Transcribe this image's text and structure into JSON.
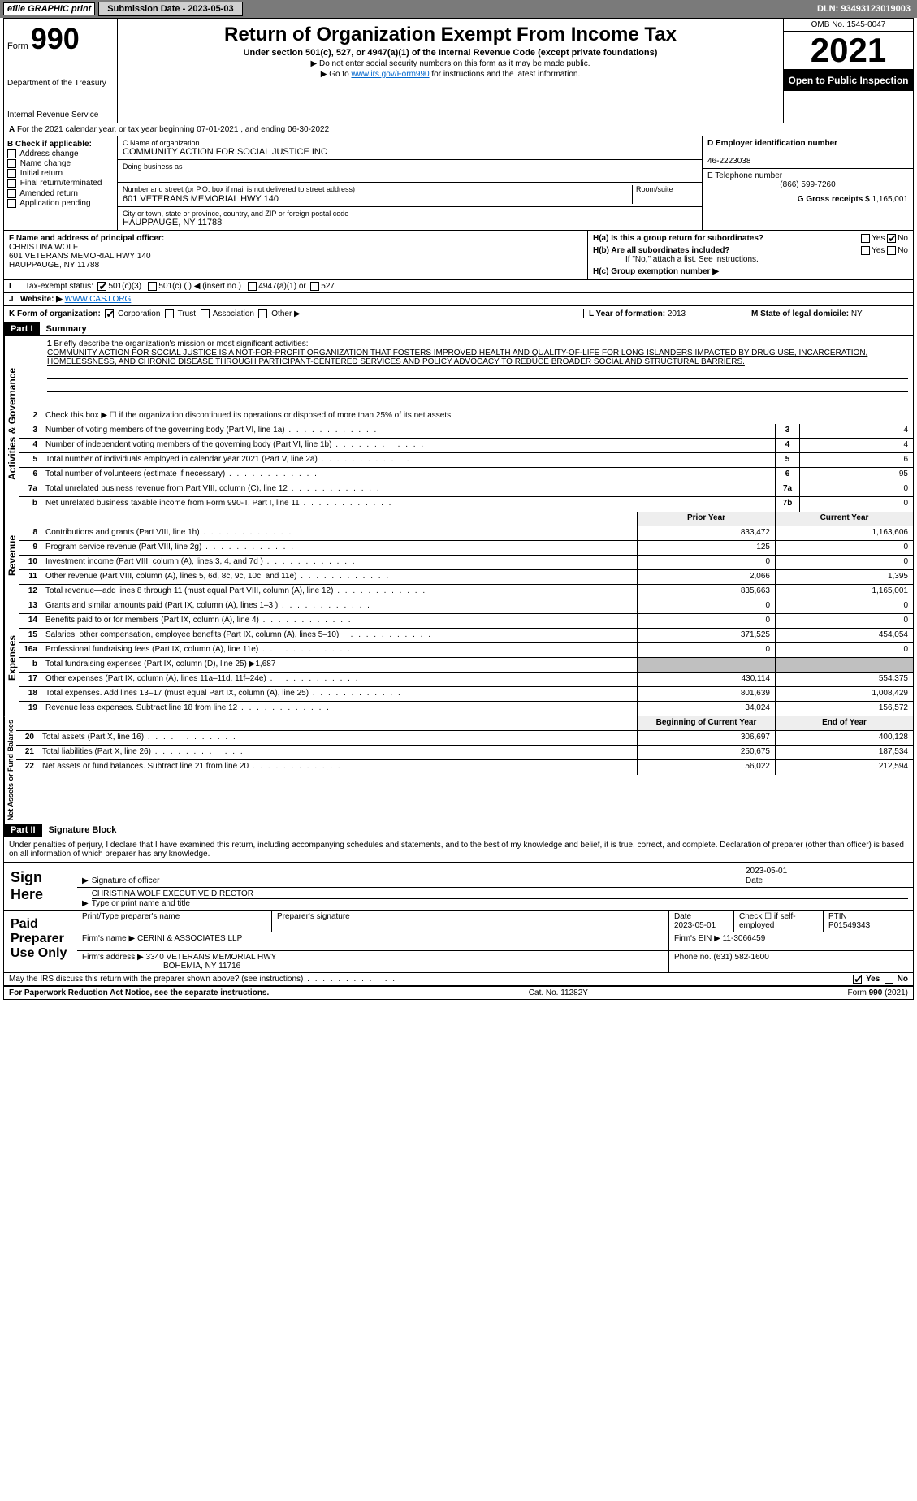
{
  "topbar": {
    "efile": "efile GRAPHIC print",
    "submission_btn": "Submission Date - 2023-05-03",
    "dln": "DLN: 93493123019003"
  },
  "header": {
    "form_label": "Form",
    "form_num": "990",
    "dept1": "Department of the Treasury",
    "dept2": "Internal Revenue Service",
    "title": "Return of Organization Exempt From Income Tax",
    "sub": "Under section 501(c), 527, or 4947(a)(1) of the Internal Revenue Code (except private foundations)",
    "note1": "▶ Do not enter social security numbers on this form as it may be made public.",
    "note2_pre": "▶ Go to ",
    "note2_link": "www.irs.gov/Form990",
    "note2_post": " for instructions and the latest information.",
    "omb": "OMB No. 1545-0047",
    "year": "2021",
    "open": "Open to Public Inspection"
  },
  "row_a": "For the 2021 calendar year, or tax year beginning 07-01-2021    , and ending 06-30-2022",
  "b": {
    "hdr": "B Check if applicable:",
    "o1": "Address change",
    "o2": "Name change",
    "o3": "Initial return",
    "o4": "Final return/terminated",
    "o5": "Amended return",
    "o6": "Application pending"
  },
  "c": {
    "name_lbl": "C Name of organization",
    "name": "COMMUNITY ACTION FOR SOCIAL JUSTICE INC",
    "dba_lbl": "Doing business as",
    "addr_lbl": "Number and street (or P.O. box if mail is not delivered to street address)",
    "room_lbl": "Room/suite",
    "addr": "601 VETERANS MEMORIAL HWY 140",
    "city_lbl": "City or town, state or province, country, and ZIP or foreign postal code",
    "city": "HAUPPAUGE, NY  11788"
  },
  "d": {
    "ein_lbl": "D Employer identification number",
    "ein": "46-2223038",
    "tel_lbl": "E Telephone number",
    "tel": "(866) 599-7260",
    "gross_lbl": "G Gross receipts $",
    "gross": "1,165,001"
  },
  "f": {
    "lbl": "F Name and address of principal officer:",
    "name": "CHRISTINA WOLF",
    "addr": "601 VETERANS MEMORIAL HWY 140",
    "city": "HAUPPAUGE, NY  11788"
  },
  "h": {
    "a": "H(a)  Is this a group return for subordinates?",
    "b": "H(b)  Are all subordinates included?",
    "b_note": "If \"No,\" attach a list. See instructions.",
    "c": "H(c)  Group exemption number ▶",
    "yes": "Yes",
    "no": "No"
  },
  "i": {
    "lbl": "Tax-exempt status:",
    "o1": "501(c)(3)",
    "o2": "501(c) (  ) ◀ (insert no.)",
    "o3": "4947(a)(1) or",
    "o4": "527"
  },
  "j": {
    "lbl": "Website: ▶",
    "val": "WWW.CASJ.ORG"
  },
  "k": {
    "lbl": "K Form of organization:",
    "o1": "Corporation",
    "o2": "Trust",
    "o3": "Association",
    "o4": "Other ▶"
  },
  "l": {
    "lbl": "L Year of formation:",
    "val": "2013"
  },
  "m": {
    "lbl": "M State of legal domicile:",
    "val": "NY"
  },
  "part1": {
    "num": "Part I",
    "title": "Summary"
  },
  "q1": {
    "lbl": "Briefly describe the organization's mission or most significant activities:",
    "text": "COMMUNITY ACTION FOR SOCIAL JUSTICE IS A NOT-FOR-PROFIT ORGANIZATION THAT FOSTERS IMPROVED HEALTH AND QUALITY-OF-LIFE FOR LONG ISLANDERS IMPACTED BY DRUG USE, INCARCERATION, HOMELESSNESS, AND CHRONIC DISEASE THROUGH PARTICIPANT-CENTERED SERVICES AND POLICY ADVOCACY TO REDUCE BROADER SOCIAL AND STRUCTURAL BARRIERS."
  },
  "q2": "Check this box ▶ ☐ if the organization discontinued its operations or disposed of more than 25% of its net assets.",
  "lines_gov": [
    {
      "n": "3",
      "d": "Number of voting members of the governing body (Part VI, line 1a)",
      "bn": "3",
      "v": "4"
    },
    {
      "n": "4",
      "d": "Number of independent voting members of the governing body (Part VI, line 1b)",
      "bn": "4",
      "v": "4"
    },
    {
      "n": "5",
      "d": "Total number of individuals employed in calendar year 2021 (Part V, line 2a)",
      "bn": "5",
      "v": "6"
    },
    {
      "n": "6",
      "d": "Total number of volunteers (estimate if necessary)",
      "bn": "6",
      "v": "95"
    },
    {
      "n": "7a",
      "d": "Total unrelated business revenue from Part VIII, column (C), line 12",
      "bn": "7a",
      "v": "0"
    },
    {
      "n": "b",
      "d": "Net unrelated business taxable income from Form 990-T, Part I, line 11",
      "bn": "7b",
      "v": "0"
    }
  ],
  "col_hdr": {
    "py": "Prior Year",
    "cy": "Current Year"
  },
  "lines_rev": [
    {
      "n": "8",
      "d": "Contributions and grants (Part VIII, line 1h)",
      "py": "833,472",
      "cy": "1,163,606"
    },
    {
      "n": "9",
      "d": "Program service revenue (Part VIII, line 2g)",
      "py": "125",
      "cy": "0"
    },
    {
      "n": "10",
      "d": "Investment income (Part VIII, column (A), lines 3, 4, and 7d )",
      "py": "0",
      "cy": "0"
    },
    {
      "n": "11",
      "d": "Other revenue (Part VIII, column (A), lines 5, 6d, 8c, 9c, 10c, and 11e)",
      "py": "2,066",
      "cy": "1,395"
    },
    {
      "n": "12",
      "d": "Total revenue—add lines 8 through 11 (must equal Part VIII, column (A), line 12)",
      "py": "835,663",
      "cy": "1,165,001"
    }
  ],
  "lines_exp": [
    {
      "n": "13",
      "d": "Grants and similar amounts paid (Part IX, column (A), lines 1–3 )",
      "py": "0",
      "cy": "0"
    },
    {
      "n": "14",
      "d": "Benefits paid to or for members (Part IX, column (A), line 4)",
      "py": "0",
      "cy": "0"
    },
    {
      "n": "15",
      "d": "Salaries, other compensation, employee benefits (Part IX, column (A), lines 5–10)",
      "py": "371,525",
      "cy": "454,054"
    },
    {
      "n": "16a",
      "d": "Professional fundraising fees (Part IX, column (A), line 11e)",
      "py": "0",
      "cy": "0"
    },
    {
      "n": "b",
      "d": "Total fundraising expenses (Part IX, column (D), line 25) ▶1,687",
      "py": "",
      "cy": "",
      "grey": true
    },
    {
      "n": "17",
      "d": "Other expenses (Part IX, column (A), lines 11a–11d, 11f–24e)",
      "py": "430,114",
      "cy": "554,375"
    },
    {
      "n": "18",
      "d": "Total expenses. Add lines 13–17 (must equal Part IX, column (A), line 25)",
      "py": "801,639",
      "cy": "1,008,429"
    },
    {
      "n": "19",
      "d": "Revenue less expenses. Subtract line 18 from line 12",
      "py": "34,024",
      "cy": "156,572"
    }
  ],
  "col_hdr2": {
    "py": "Beginning of Current Year",
    "cy": "End of Year"
  },
  "lines_net": [
    {
      "n": "20",
      "d": "Total assets (Part X, line 16)",
      "py": "306,697",
      "cy": "400,128"
    },
    {
      "n": "21",
      "d": "Total liabilities (Part X, line 26)",
      "py": "250,675",
      "cy": "187,534"
    },
    {
      "n": "22",
      "d": "Net assets or fund balances. Subtract line 21 from line 20",
      "py": "56,022",
      "cy": "212,594"
    }
  ],
  "side": {
    "gov": "Activities & Governance",
    "rev": "Revenue",
    "exp": "Expenses",
    "net": "Net Assets or Fund Balances"
  },
  "part2": {
    "num": "Part II",
    "title": "Signature Block"
  },
  "sig_decl": "Under penalties of perjury, I declare that I have examined this return, including accompanying schedules and statements, and to the best of my knowledge and belief, it is true, correct, and complete. Declaration of preparer (other than officer) is based on all information of which preparer has any knowledge.",
  "sign": {
    "lbl": "Sign Here",
    "date": "2023-05-01",
    "sig_lbl": "Signature of officer",
    "date_lbl": "Date",
    "name": "CHRISTINA WOLF  EXECUTIVE DIRECTOR",
    "name_lbl": "Type or print name and title"
  },
  "paid": {
    "lbl": "Paid Preparer Use Only",
    "h1": "Print/Type preparer's name",
    "h2": "Preparer's signature",
    "h3": "Date",
    "date": "2023-05-01",
    "h4": "Check ☐ if self-employed",
    "h5": "PTIN",
    "ptin": "P01549343",
    "firm_lbl": "Firm's name    ▶",
    "firm": "CERINI & ASSOCIATES LLP",
    "ein_lbl": "Firm's EIN ▶",
    "ein": "11-3066459",
    "addr_lbl": "Firm's address ▶",
    "addr": "3340 VETERANS MEMORIAL HWY",
    "addr2": "BOHEMIA, NY  11716",
    "tel_lbl": "Phone no.",
    "tel": "(631) 582-1600"
  },
  "discuss": "May the IRS discuss this return with the preparer shown above? (see instructions)",
  "foot": {
    "l": "For Paperwork Reduction Act Notice, see the separate instructions.",
    "m": "Cat. No. 11282Y",
    "r": "Form 990 (2021)"
  }
}
